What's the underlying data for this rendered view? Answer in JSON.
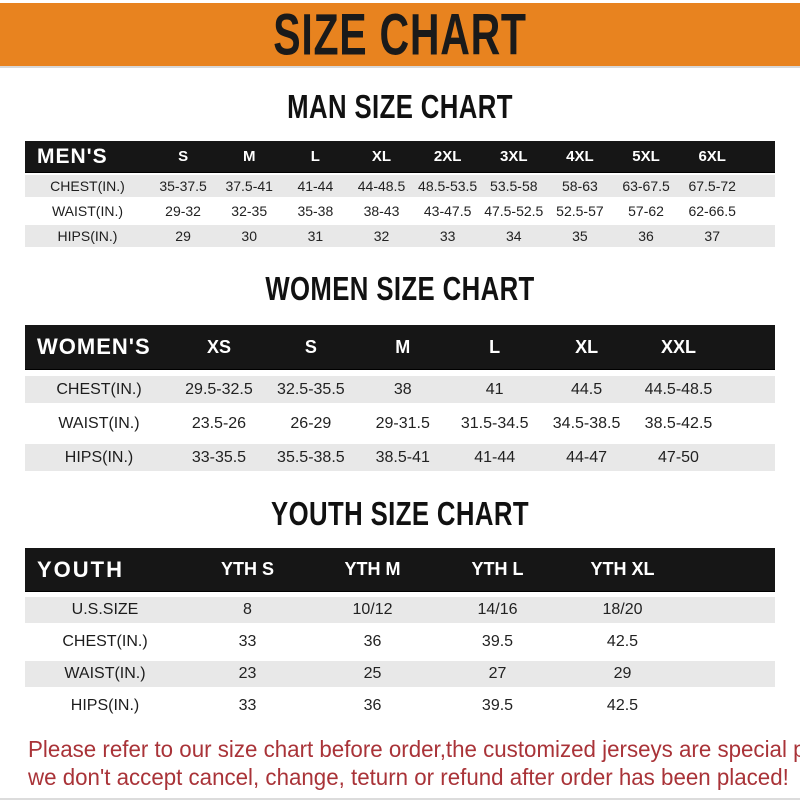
{
  "banner": {
    "title": "SIZE CHART"
  },
  "sections": [
    {
      "key": "men",
      "heading": "MAN SIZE CHART",
      "label": "MEN'S",
      "columns": [
        "S",
        "M",
        "L",
        "XL",
        "2XL",
        "3XL",
        "4XL",
        "5XL",
        "6XL"
      ],
      "rows": [
        {
          "label": "CHEST(IN.)",
          "values": [
            "35-37.5",
            "37.5-41",
            "41-44",
            "44-48.5",
            "48.5-53.5",
            "53.5-58",
            "58-63",
            "63-67.5",
            "67.5-72"
          ]
        },
        {
          "label": "WAIST(IN.)",
          "values": [
            "29-32",
            "32-35",
            "35-38",
            "38-43",
            "43-47.5",
            "47.5-52.5",
            "52.5-57",
            "57-62",
            "62-66.5"
          ]
        },
        {
          "label": "HIPS(IN.)",
          "values": [
            "29",
            "30",
            "31",
            "32",
            "33",
            "34",
            "35",
            "36",
            "37"
          ]
        }
      ]
    },
    {
      "key": "women",
      "heading": "WOMEN SIZE CHART",
      "label": "WOMEN'S",
      "columns": [
        "XS",
        "S",
        "M",
        "L",
        "XL",
        "XXL"
      ],
      "rows": [
        {
          "label": "CHEST(IN.)",
          "values": [
            "29.5-32.5",
            "32.5-35.5",
            "38",
            "41",
            "44.5",
            "44.5-48.5"
          ]
        },
        {
          "label": "WAIST(IN.)",
          "values": [
            "23.5-26",
            "26-29",
            "29-31.5",
            "31.5-34.5",
            "34.5-38.5",
            "38.5-42.5"
          ]
        },
        {
          "label": "HIPS(IN.)",
          "values": [
            "33-35.5",
            "35.5-38.5",
            "38.5-41",
            "41-44",
            "44-47",
            "47-50"
          ]
        }
      ]
    },
    {
      "key": "youth",
      "heading": "YOUTH SIZE CHART",
      "label": "YOUTH",
      "columns": [
        "YTH S",
        "YTH M",
        "YTH L",
        "YTH XL"
      ],
      "rows": [
        {
          "label": "U.S.SIZE",
          "values": [
            "8",
            "10/12",
            "14/16",
            "18/20"
          ]
        },
        {
          "label": "CHEST(IN.)",
          "values": [
            "33",
            "36",
            "39.5",
            "42.5"
          ]
        },
        {
          "label": "WAIST(IN.)",
          "values": [
            "23",
            "25",
            "27",
            "29"
          ]
        },
        {
          "label": "HIPS(IN.)",
          "values": [
            "33",
            "36",
            "39.5",
            "42.5"
          ]
        }
      ]
    }
  ],
  "footer": {
    "line1": "Please refer to our size chart before order,the customized jerseys are special products,",
    "line2": "we don't accept cancel, change, teturn or refund after order has been placed!"
  },
  "colors": {
    "banner_bg": "#E8831F",
    "banner_text": "#1A1A1A",
    "table_header_bg": "#161616",
    "row_shade": "#E8E8E8",
    "footer_text": "#A93338"
  }
}
